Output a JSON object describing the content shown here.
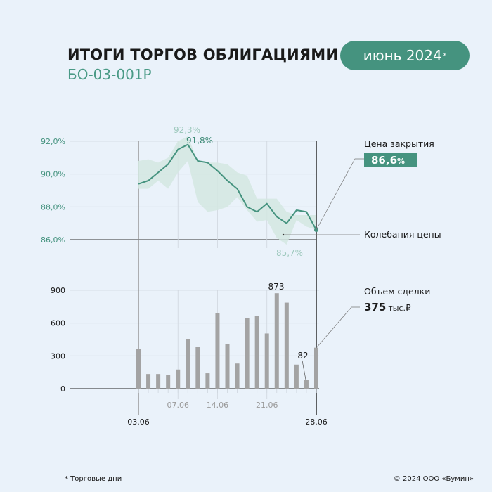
{
  "header": {
    "title": "ИТОГИ ТОРГОВ ОБЛИГАЦИЯМИ",
    "subtitle": "БО-03-001Р",
    "period": "июнь 2024",
    "period_note_mark": "*"
  },
  "footer": {
    "note": "* Торговые дни",
    "copyright": "© 2024 ООО «Бумин»"
  },
  "colors": {
    "accent": "#45937f",
    "band": "#d3e8e0",
    "bars": "#a3a3a3"
  },
  "chart_data": [
    {
      "type": "line",
      "name": "price",
      "x": [
        "03.06",
        "04.06",
        "05.06",
        "06.06",
        "07.06",
        "10.06",
        "11.06",
        "13.06",
        "14.06",
        "17.06",
        "18.06",
        "19.06",
        "20.06",
        "21.06",
        "24.06",
        "25.06",
        "26.06",
        "27.06",
        "28.06"
      ],
      "xticks": [
        "03.06",
        "07.06",
        "14.06",
        "21.06",
        "28.06"
      ],
      "series": [
        {
          "name": "Цена закрытия",
          "values": [
            89.4,
            89.6,
            90.1,
            90.6,
            91.5,
            91.8,
            90.8,
            90.7,
            90.2,
            89.6,
            89.1,
            88.0,
            87.7,
            88.2,
            87.4,
            87.0,
            87.8,
            87.7,
            86.6
          ]
        },
        {
          "name": "Колебания цены",
          "high": [
            90.8,
            90.9,
            90.7,
            91.0,
            92.0,
            92.3,
            90.8,
            90.7,
            90.7,
            90.6,
            90.1,
            89.9,
            88.5,
            88.5,
            88.5,
            87.7,
            87.5,
            87.5,
            87.5
          ],
          "low": [
            89.1,
            89.1,
            89.6,
            89.1,
            90.1,
            90.8,
            88.3,
            87.7,
            87.8,
            88.0,
            88.6,
            87.8,
            87.1,
            87.2,
            86.1,
            85.7,
            87.2,
            86.8,
            86.6
          ]
        }
      ],
      "yticks": [
        "92,0%",
        "90,0%",
        "88,0%",
        "86,0%"
      ],
      "ylim": [
        86,
        92
      ],
      "annotations": {
        "max_high": "92,3%",
        "max_close": "91,8%",
        "min_low": "85,7%"
      },
      "legend": {
        "close_label": "Цена закрытия",
        "close_value": "86,6",
        "close_unit": "%",
        "range_label": "Колебания цены"
      }
    },
    {
      "type": "bar",
      "name": "volume",
      "values": [
        363,
        134,
        134,
        128,
        175,
        452,
        384,
        141,
        691,
        405,
        230,
        648,
        665,
        505,
        873,
        787,
        220,
        82,
        375
      ],
      "yticks": [
        "900",
        "600",
        "300",
        "0"
      ],
      "ylim": [
        0,
        900
      ],
      "annotations": {
        "max": "873",
        "min": "82"
      },
      "legend": {
        "label": "Объем сделки",
        "value": "375",
        "unit": "тыс.",
        "currency": "₽"
      }
    }
  ]
}
